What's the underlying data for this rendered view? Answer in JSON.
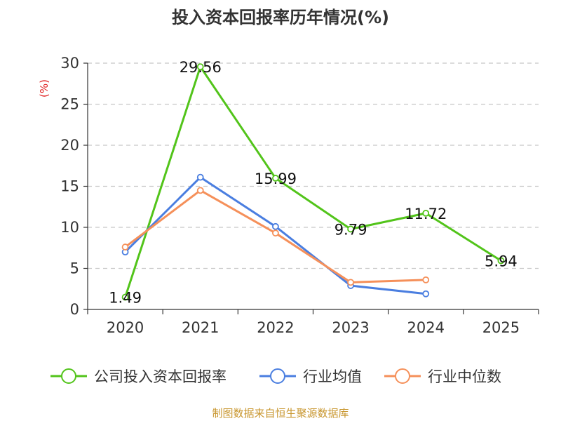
{
  "chart_data": {
    "type": "line",
    "title": "投入资本回报率历年情况(%)",
    "ylabel": "(%)",
    "xlabel": "",
    "categories": [
      "2020",
      "2021",
      "2022",
      "2023",
      "2024",
      "2025"
    ],
    "ylim": [
      0,
      30
    ],
    "yticks": [
      0,
      5,
      10,
      15,
      20,
      25,
      30
    ],
    "grid": true,
    "legend_position": "bottom",
    "series": [
      {
        "name": "公司投入资本回报率",
        "color": "#52c41a",
        "values": [
          1.49,
          29.56,
          15.99,
          9.79,
          11.72,
          5.94
        ],
        "labels": [
          "1.49",
          "29.56",
          "15.99",
          "9.79",
          "11.72",
          "5.94"
        ]
      },
      {
        "name": "行业均值",
        "color": "#4a7ee0",
        "values": [
          7.0,
          16.1,
          10.1,
          2.9,
          1.9,
          null
        ]
      },
      {
        "name": "行业中位数",
        "color": "#f5905a",
        "values": [
          7.6,
          14.5,
          9.3,
          3.3,
          3.6,
          null
        ]
      }
    ],
    "source": "制图数据来自恒生聚源数据库"
  }
}
